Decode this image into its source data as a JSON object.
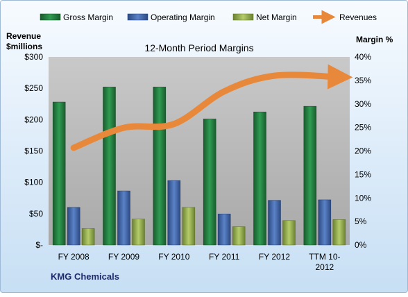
{
  "chart_data": {
    "type": "bar",
    "title": "12-Month Period Margins",
    "company": "KMG Chemicals",
    "ylabel_left_line1": "Revenue",
    "ylabel_left_line2": "$millions",
    "ylabel_right": "Margin %",
    "categories": [
      "FY 2008",
      "FY 2009",
      "FY 2010",
      "FY 2011",
      "FY 2012",
      "TTM 10-2012"
    ],
    "category_label_lines": [
      [
        "FY 2008"
      ],
      [
        "FY 2009"
      ],
      [
        "FY 2010"
      ],
      [
        "FY 2011"
      ],
      [
        "FY 2012"
      ],
      [
        "TTM 10-",
        "2012"
      ]
    ],
    "ylim_left": [
      0,
      300
    ],
    "yticks_left": [
      0,
      50,
      100,
      150,
      200,
      250,
      300
    ],
    "yticklabels_left": [
      "$-",
      "$50",
      "$100",
      "$150",
      "$200",
      "$250",
      "$300"
    ],
    "ylim_right": [
      0,
      40
    ],
    "yticks_right": [
      0,
      5,
      10,
      15,
      20,
      25,
      30,
      35,
      40
    ],
    "yticklabels_right": [
      "0%",
      "5%",
      "10%",
      "15%",
      "20%",
      "25%",
      "30%",
      "35%",
      "40%"
    ],
    "legend_position": "top",
    "grid": false,
    "series": [
      {
        "name": "Gross Margin",
        "axis": "right",
        "color": "#1e7a3c",
        "values": [
          30.4,
          33.6,
          33.6,
          26.8,
          28.3,
          29.5
        ]
      },
      {
        "name": "Operating Margin",
        "axis": "right",
        "color": "#3f64a8",
        "values": [
          8.0,
          11.5,
          13.7,
          6.6,
          9.5,
          9.6
        ]
      },
      {
        "name": "Net Margin",
        "axis": "right",
        "color": "#8fa94a",
        "values": [
          3.5,
          5.5,
          8.0,
          3.9,
          5.2,
          5.4
        ]
      },
      {
        "name": "Revenues",
        "axis": "left",
        "color": "#e8883a",
        "type": "line",
        "values": [
          155,
          187,
          193,
          245,
          270,
          268
        ]
      }
    ]
  }
}
